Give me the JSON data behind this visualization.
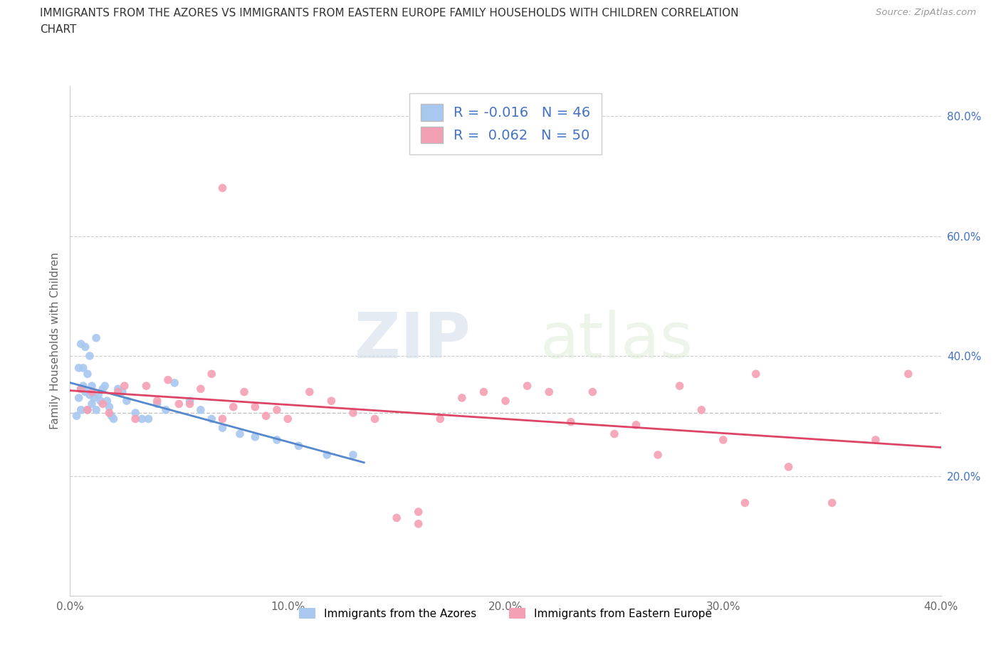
{
  "title_line1": "IMMIGRANTS FROM THE AZORES VS IMMIGRANTS FROM EASTERN EUROPE FAMILY HOUSEHOLDS WITH CHILDREN CORRELATION",
  "title_line2": "CHART",
  "source": "Source: ZipAtlas.com",
  "ylabel": "Family Households with Children",
  "xmin": 0.0,
  "xmax": 0.4,
  "ymin": 0.0,
  "ymax": 0.85,
  "yticks": [
    0.2,
    0.4,
    0.6,
    0.8
  ],
  "ytick_labels": [
    "20.0%",
    "40.0%",
    "60.0%",
    "80.0%"
  ],
  "xticks": [
    0.0,
    0.1,
    0.2,
    0.3,
    0.4
  ],
  "xtick_labels": [
    "0.0%",
    "10.0%",
    "20.0%",
    "30.0%",
    "40.0%"
  ],
  "legend_label1": "Immigrants from the Azores",
  "legend_label2": "Immigrants from Eastern Europe",
  "R1": -0.016,
  "N1": 46,
  "R2": 0.062,
  "N2": 50,
  "color1": "#a8c8f0",
  "color2": "#f4a0b4",
  "trendline_color1": "#5588cc",
  "trendline_color2": "#dd4466",
  "blue_x": [
    0.003,
    0.004,
    0.004,
    0.005,
    0.005,
    0.006,
    0.006,
    0.007,
    0.008,
    0.008,
    0.009,
    0.01,
    0.01,
    0.011,
    0.012,
    0.013,
    0.014,
    0.015,
    0.016,
    0.017,
    0.018,
    0.019,
    0.02,
    0.022,
    0.024,
    0.026,
    0.03,
    0.033,
    0.036,
    0.04,
    0.044,
    0.048,
    0.055,
    0.06,
    0.065,
    0.07,
    0.078,
    0.085,
    0.095,
    0.105,
    0.118,
    0.13,
    0.005,
    0.007,
    0.009,
    0.012
  ],
  "blue_y": [
    0.3,
    0.33,
    0.38,
    0.31,
    0.345,
    0.35,
    0.38,
    0.34,
    0.31,
    0.37,
    0.335,
    0.35,
    0.32,
    0.33,
    0.31,
    0.335,
    0.325,
    0.345,
    0.35,
    0.325,
    0.315,
    0.3,
    0.295,
    0.345,
    0.34,
    0.325,
    0.305,
    0.295,
    0.295,
    0.32,
    0.31,
    0.355,
    0.325,
    0.31,
    0.295,
    0.28,
    0.27,
    0.265,
    0.26,
    0.25,
    0.235,
    0.235,
    0.42,
    0.415,
    0.4,
    0.43
  ],
  "pink_x": [
    0.005,
    0.008,
    0.01,
    0.015,
    0.018,
    0.022,
    0.025,
    0.03,
    0.035,
    0.04,
    0.045,
    0.05,
    0.055,
    0.06,
    0.065,
    0.07,
    0.075,
    0.08,
    0.085,
    0.09,
    0.095,
    0.1,
    0.11,
    0.12,
    0.13,
    0.14,
    0.15,
    0.16,
    0.17,
    0.18,
    0.19,
    0.2,
    0.21,
    0.22,
    0.23,
    0.24,
    0.25,
    0.26,
    0.27,
    0.28,
    0.29,
    0.3,
    0.315,
    0.33,
    0.35,
    0.37,
    0.385,
    0.07,
    0.16,
    0.31
  ],
  "pink_y": [
    0.345,
    0.31,
    0.34,
    0.32,
    0.305,
    0.34,
    0.35,
    0.295,
    0.35,
    0.325,
    0.36,
    0.32,
    0.32,
    0.345,
    0.37,
    0.295,
    0.315,
    0.34,
    0.315,
    0.3,
    0.31,
    0.295,
    0.34,
    0.325,
    0.305,
    0.295,
    0.13,
    0.12,
    0.295,
    0.33,
    0.34,
    0.325,
    0.35,
    0.34,
    0.29,
    0.34,
    0.27,
    0.285,
    0.235,
    0.35,
    0.31,
    0.26,
    0.37,
    0.215,
    0.155,
    0.26,
    0.37,
    0.68,
    0.14,
    0.155
  ]
}
